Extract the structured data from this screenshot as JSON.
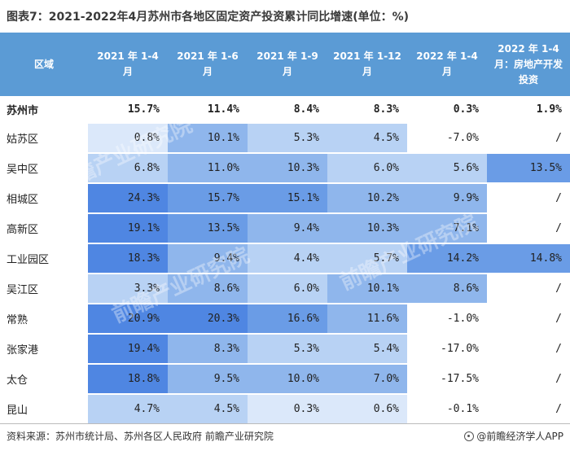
{
  "title": "图表7：2021-2022年4月苏州市各地区固定资产投资累计同比增速(单位：%)",
  "source": "资料来源：苏州市统计局、苏州各区人民政府 前瞻产业研究院",
  "brand": "@前瞻经济学人APP",
  "watermark": "前瞻产业研究院",
  "colors": {
    "header": "#5b9bd5",
    "scale": [
      "#ffffff",
      "#dbe8fa",
      "#b8d2f4",
      "#8fb6ec",
      "#6a9ce6",
      "#4f86e2"
    ]
  },
  "chart_data": {
    "type": "table",
    "title": "图表7：2021-2022年4月苏州市各地区固定资产投资累计同比增速(单位：%)",
    "columns": [
      "区域",
      "2021 年 1-4 月",
      "2021 年 1-6 月",
      "2021 年 1-9 月",
      "2021 年 1-12 月",
      "2022 年 1-4 月",
      "2022 年 1-4 月：房地产开发投资"
    ],
    "rows": [
      {
        "region": "苏州市",
        "values": [
          "15.7%",
          "11.4%",
          "8.4%",
          "8.3%",
          "0.3%",
          "1.9%"
        ],
        "total": true
      },
      {
        "region": "姑苏区",
        "values": [
          "0.8%",
          "10.1%",
          "5.3%",
          "4.5%",
          "-7.0%",
          "/"
        ]
      },
      {
        "region": "吴中区",
        "values": [
          "6.8%",
          "11.0%",
          "10.3%",
          "6.0%",
          "5.6%",
          "13.5%"
        ]
      },
      {
        "region": "相城区",
        "values": [
          "24.3%",
          "15.7%",
          "15.1%",
          "10.2%",
          "9.9%",
          "/"
        ]
      },
      {
        "region": "高新区",
        "values": [
          "19.1%",
          "13.5%",
          "9.4%",
          "10.3%",
          "7.1%",
          "/"
        ]
      },
      {
        "region": "工业园区",
        "values": [
          "18.3%",
          "9.4%",
          "4.4%",
          "5.7%",
          "14.2%",
          "14.8%"
        ]
      },
      {
        "region": "吴江区",
        "values": [
          "3.3%",
          "8.6%",
          "6.0%",
          "10.1%",
          "8.6%",
          "/"
        ]
      },
      {
        "region": "常熟",
        "values": [
          "20.9%",
          "20.3%",
          "16.6%",
          "11.6%",
          "-1.0%",
          "/"
        ]
      },
      {
        "region": "张家港",
        "values": [
          "19.4%",
          "8.3%",
          "5.3%",
          "5.4%",
          "-17.0%",
          "/"
        ]
      },
      {
        "region": "太仓",
        "values": [
          "18.8%",
          "9.5%",
          "10.0%",
          "7.0%",
          "-17.5%",
          "/"
        ]
      },
      {
        "region": "昆山",
        "values": [
          "4.7%",
          "4.5%",
          "0.3%",
          "0.6%",
          "-0.1%",
          "/"
        ]
      }
    ]
  }
}
